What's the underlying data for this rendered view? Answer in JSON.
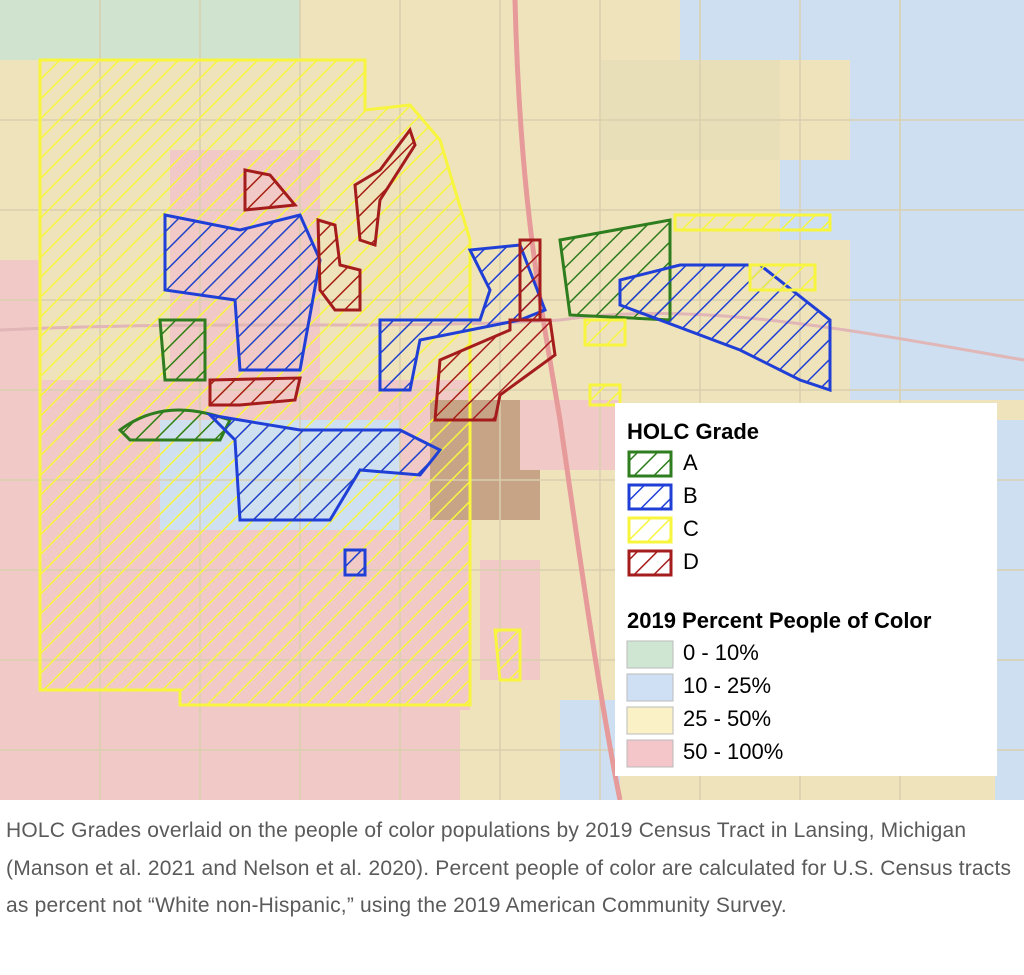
{
  "legend": {
    "grade_title": "HOLC Grade",
    "grades": [
      "A",
      "B",
      "C",
      "D"
    ],
    "population_title": "2019 Percent People of Color",
    "population_ranges": [
      "0 - 10%",
      "10 - 25%",
      "25 - 50%",
      "50 - 100%"
    ]
  },
  "caption": "HOLC Grades overlaid on the people of color populations by 2019 Census Tract in Lansing, Michigan (Manson et al. 2021 and Nelson et al. 2020). Percent people of color are calculated for U.S. Census tracts as percent not “White non-Hispanic,” using the 2019 American Community Survey."
}
